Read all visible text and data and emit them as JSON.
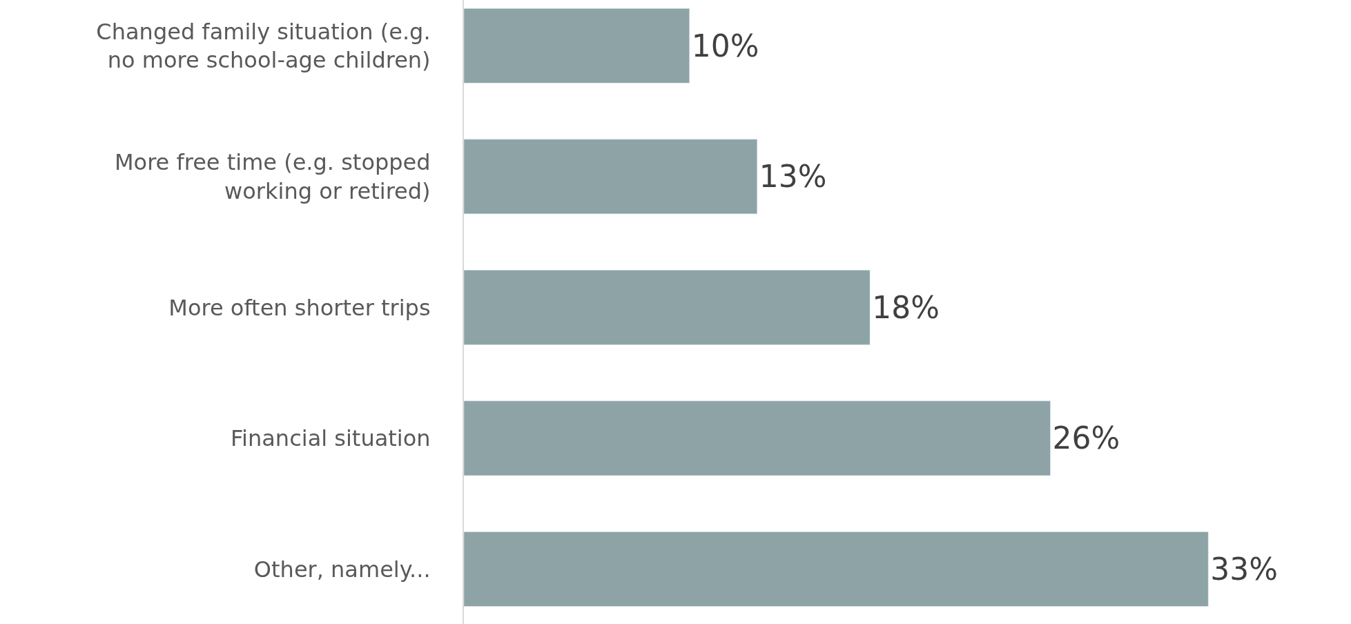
{
  "chart_data": {
    "type": "bar",
    "orientation": "horizontal",
    "categories": [
      "Changed family situation (e.g. no more school-age children)",
      "More free time (e.g. stopped working or retired)",
      "More often shorter trips",
      "Financial situation",
      "Other, namely..."
    ],
    "values": [
      10,
      13,
      18,
      26,
      33
    ],
    "value_labels": [
      "10%",
      "13%",
      "18%",
      "26%",
      "33%"
    ],
    "color": "#8da3a6"
  }
}
